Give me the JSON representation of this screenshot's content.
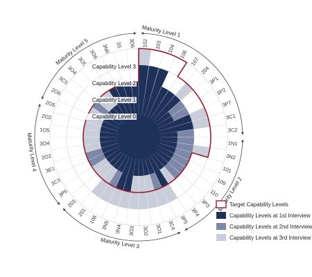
{
  "chart_data": {
    "type": "radial-bar",
    "level_labels": [
      "Capability Level 0",
      "Capability Level 1",
      "Capability Level 2",
      "Capability Level 3"
    ],
    "maturity_labels": [
      "Maturity Level 1",
      "Maturity Level 2",
      "Maturity Level 3",
      "Maturity Level 4",
      "Maturity Level 5"
    ],
    "legend": [
      {
        "name": "Target Capability Levels",
        "color": "#9b1b30",
        "style": "outline"
      },
      {
        "name": "Capability Levels at 1st Interview",
        "color": "#1e3158",
        "style": "fill"
      },
      {
        "name": "Capability Levels at 2nd Interview",
        "color": "#7d87a8",
        "style": "fill"
      },
      {
        "name": "Capability Levels at 3rd Interview",
        "color": "#c9ccd9",
        "style": "fill"
      }
    ],
    "processes": [
      "102",
      "103",
      "104",
      "106",
      "107",
      "204",
      "3P1",
      "3P2",
      "3P7",
      "3C1",
      "3C2",
      "1N1",
      "3N2",
      "101",
      "109",
      "110",
      "3P3",
      "3P4",
      "3P5",
      "3C4",
      "3O1",
      "3O2",
      "3O3",
      "3N4",
      "3N5",
      "108",
      "201",
      "203",
      "3P6",
      "3C3",
      "3E1",
      "2O2",
      "3O4",
      "1O5",
      "2O2",
      "2O5",
      "2O6",
      "3C5",
      "3O4",
      "3O5",
      "3O6",
      "3N6",
      "3S",
      "3D6"
    ],
    "target": [
      4,
      4,
      4,
      4,
      3,
      3,
      3,
      3,
      3,
      3,
      3,
      3,
      3,
      2,
      2,
      2,
      2,
      2,
      2,
      2,
      2,
      2,
      2,
      2,
      2,
      2,
      2,
      2,
      2,
      2,
      2,
      2,
      2,
      2,
      2,
      2,
      2,
      2,
      2,
      2,
      2,
      2,
      2,
      2
    ],
    "interview1": [
      3,
      3,
      3,
      2,
      2,
      2,
      1,
      1,
      2,
      2,
      1,
      1,
      1,
      1,
      1,
      1,
      1,
      1,
      2,
      1,
      1,
      1,
      1,
      2,
      2,
      1,
      1,
      1,
      1,
      1,
      1,
      1,
      1,
      1,
      1,
      1,
      1,
      1,
      1,
      1,
      2,
      2,
      2,
      2
    ],
    "interview2": [
      3,
      3,
      3,
      2,
      2,
      2,
      2,
      2,
      2,
      2,
      2,
      2,
      2,
      2,
      2,
      2,
      2,
      1,
      2,
      2,
      1,
      1,
      1,
      2,
      2,
      2,
      1,
      1,
      1,
      2,
      2,
      1,
      1,
      1,
      1,
      1,
      1,
      2,
      1,
      1,
      2,
      2,
      2,
      2
    ],
    "interview3": [
      4,
      3,
      3,
      2,
      2,
      3,
      2,
      2,
      3,
      3,
      2,
      2,
      3,
      2,
      2,
      2,
      2,
      2,
      3,
      3,
      3,
      3,
      3,
      3,
      3,
      3,
      3,
      2,
      2,
      2,
      2,
      2,
      2,
      2,
      2,
      2,
      2,
      2,
      2,
      2,
      2,
      2,
      2,
      2
    ],
    "rmax": 4
  }
}
